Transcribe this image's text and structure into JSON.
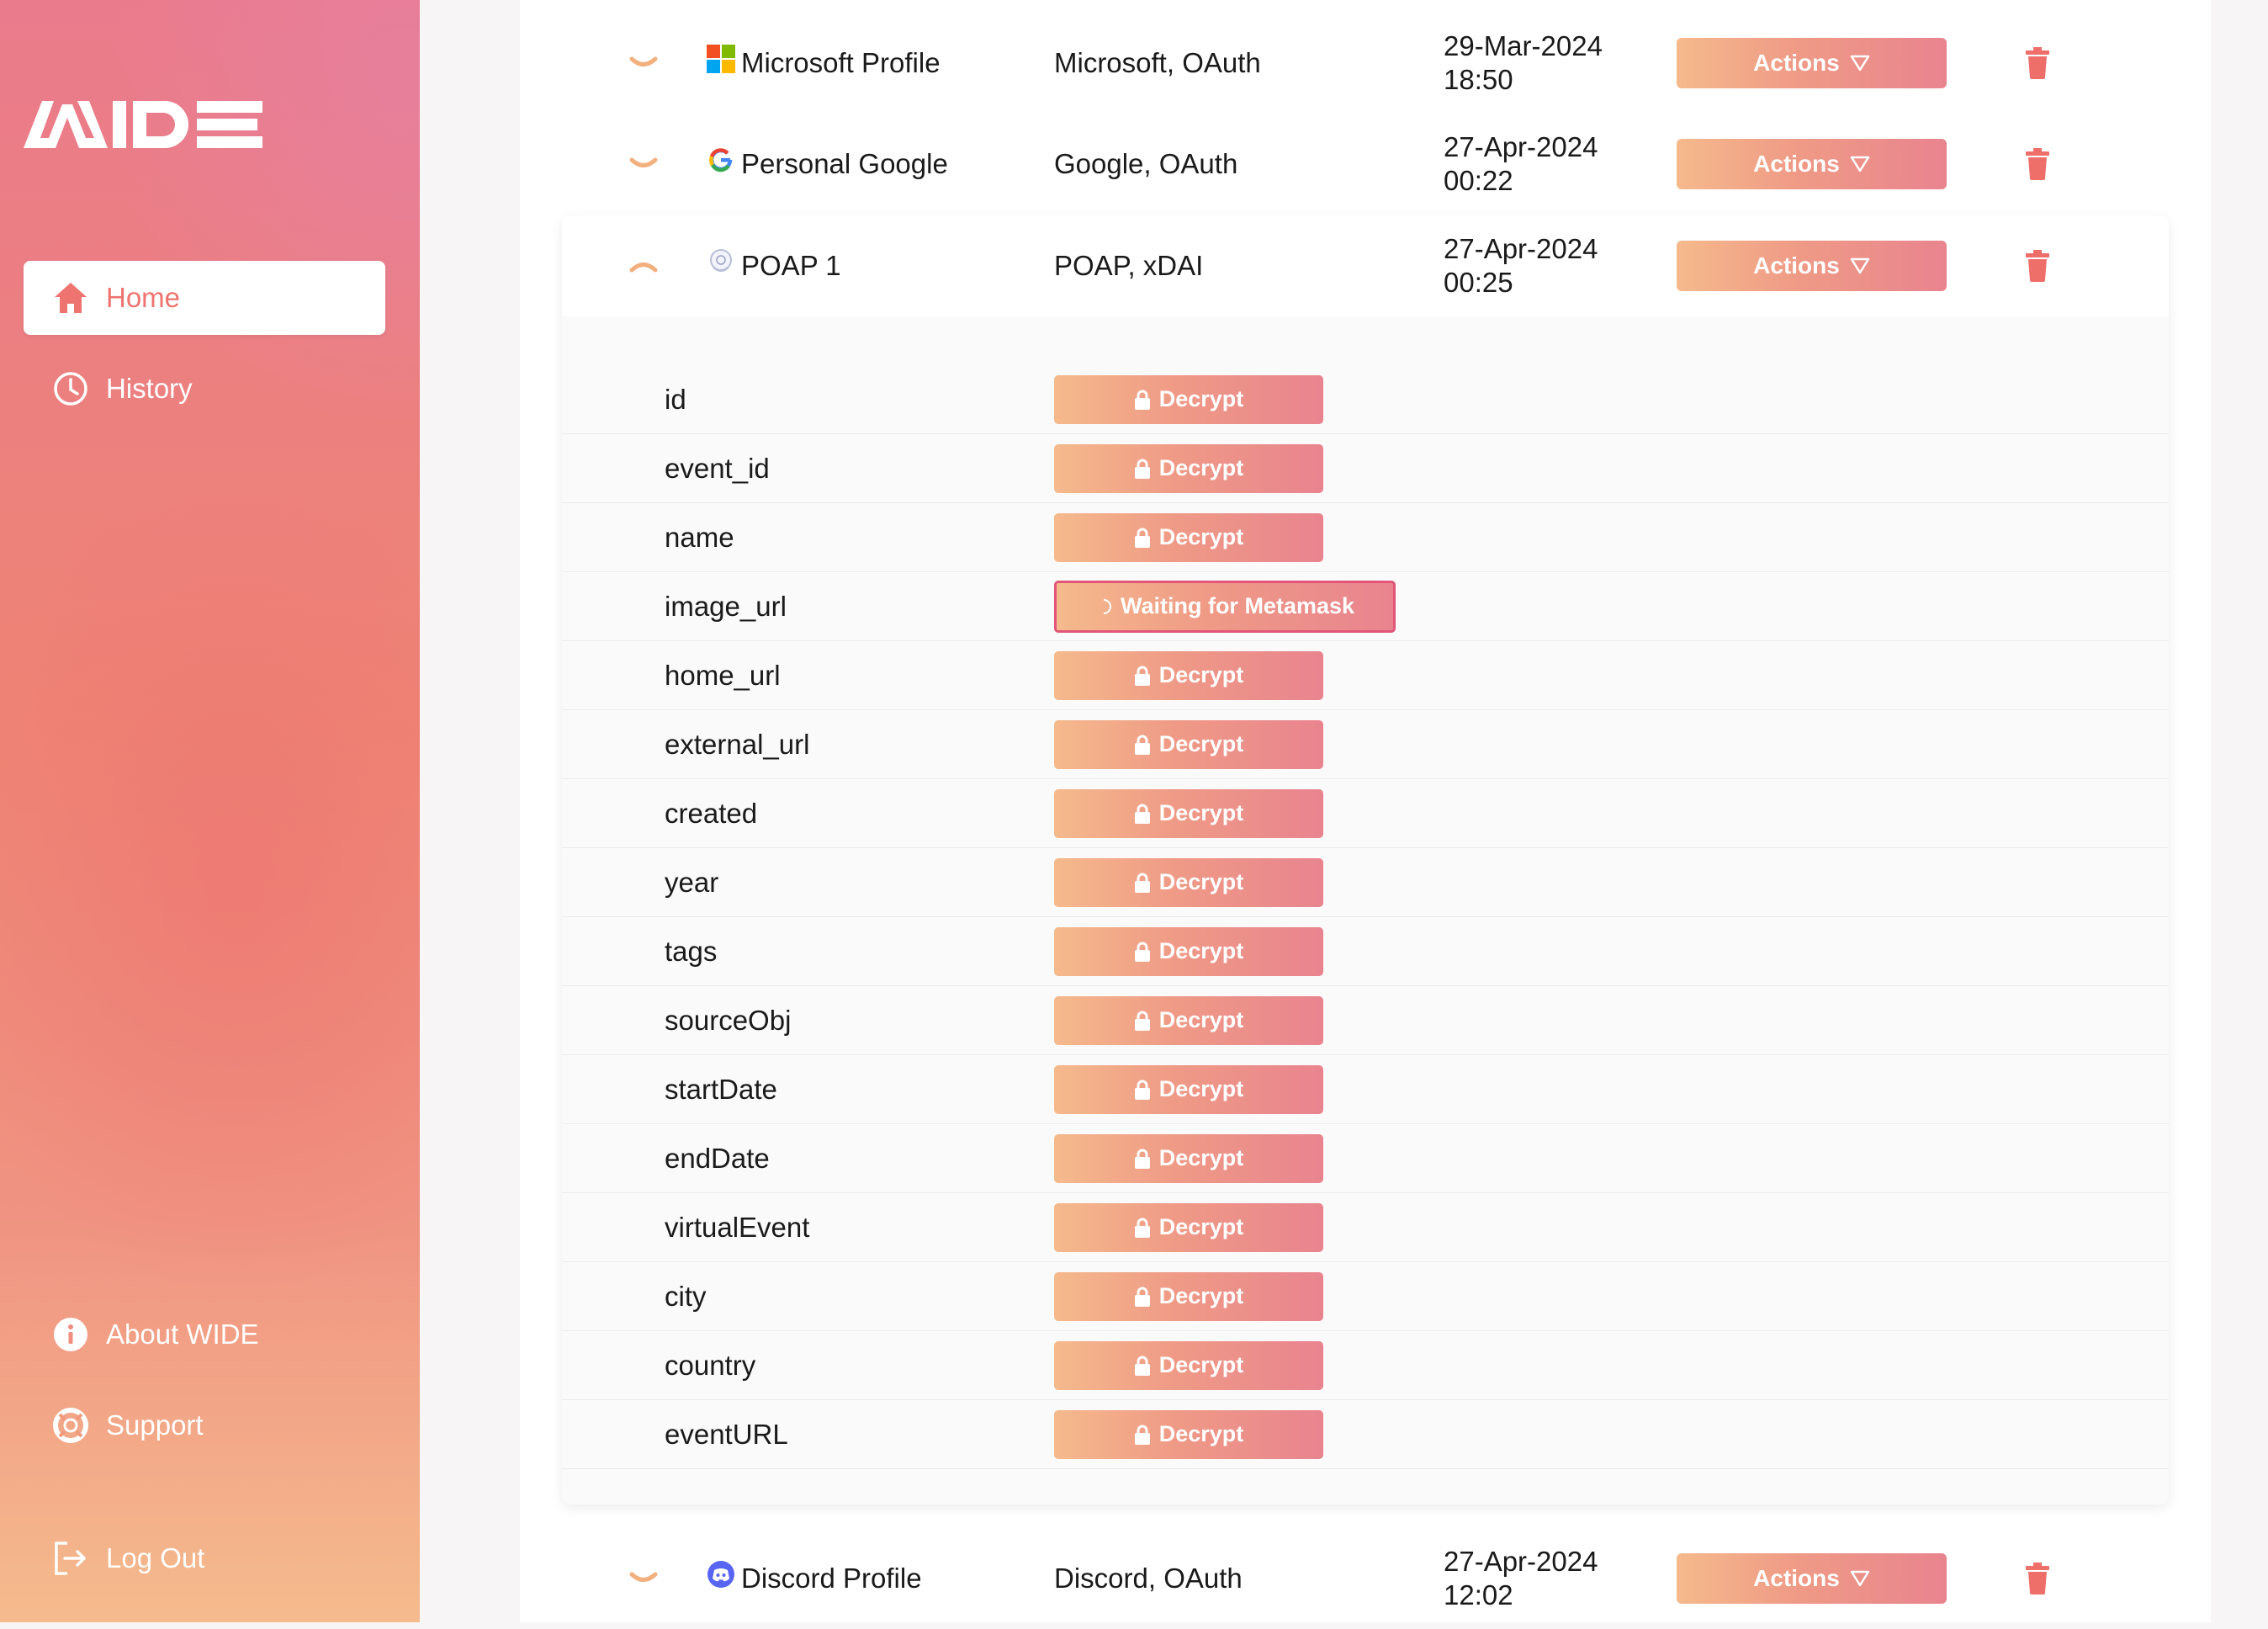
{
  "brand": {
    "name": "WIDE",
    "accent": "#ee7470"
  },
  "sidebar": {
    "nav": [
      {
        "label": "Home",
        "icon": "home-icon",
        "active": true
      },
      {
        "label": "History",
        "icon": "clock-icon",
        "active": false
      }
    ],
    "bottom": [
      {
        "label": "About WIDE",
        "icon": "info-icon"
      },
      {
        "label": "Support",
        "icon": "lifebuoy-icon"
      },
      {
        "label": "Log Out",
        "icon": "logout-icon"
      }
    ]
  },
  "credentials": [
    {
      "name": "Microsoft Profile",
      "type": "Microsoft, OAuth",
      "date": "29-Mar-2024",
      "time": "18:50",
      "actions_label": "Actions",
      "icon": "microsoft-icon"
    },
    {
      "name": "Personal Google",
      "type": "Google, OAuth",
      "date": "27-Apr-2024",
      "time": "00:22",
      "actions_label": "Actions",
      "icon": "google-icon"
    },
    {
      "name": "POAP 1",
      "type": "POAP, xDAI",
      "date": "27-Apr-2024",
      "time": "00:25",
      "actions_label": "Actions",
      "icon": "poap-icon",
      "expanded": true
    },
    {
      "name": "Discord Profile",
      "type": "Discord, OAuth",
      "date": "27-Apr-2024",
      "time": "12:02",
      "actions_label": "Actions",
      "icon": "discord-icon"
    }
  ],
  "fields": [
    {
      "name": "id",
      "button": "Decrypt"
    },
    {
      "name": "event_id",
      "button": "Decrypt"
    },
    {
      "name": "name",
      "button": "Decrypt"
    },
    {
      "name": "image_url",
      "button": "Waiting for Metamask",
      "waiting": true
    },
    {
      "name": "home_url",
      "button": "Decrypt"
    },
    {
      "name": "external_url",
      "button": "Decrypt"
    },
    {
      "name": "created",
      "button": "Decrypt"
    },
    {
      "name": "year",
      "button": "Decrypt"
    },
    {
      "name": "tags",
      "button": "Decrypt"
    },
    {
      "name": "sourceObj",
      "button": "Decrypt"
    },
    {
      "name": "startDate",
      "button": "Decrypt"
    },
    {
      "name": "endDate",
      "button": "Decrypt"
    },
    {
      "name": "virtualEvent",
      "button": "Decrypt"
    },
    {
      "name": "city",
      "button": "Decrypt"
    },
    {
      "name": "country",
      "button": "Decrypt"
    },
    {
      "name": "eventURL",
      "button": "Decrypt"
    }
  ]
}
